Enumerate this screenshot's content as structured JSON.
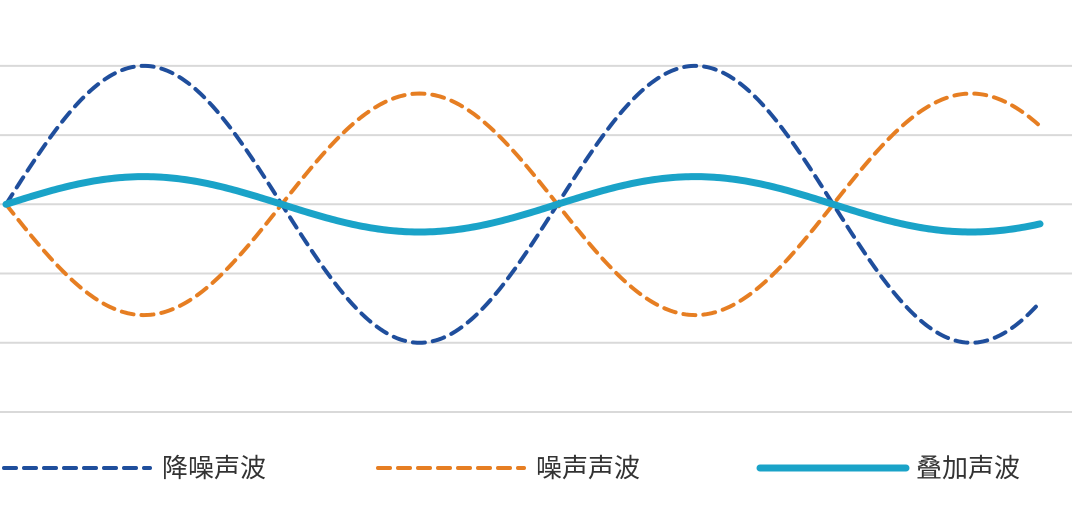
{
  "chart_data": {
    "type": "line",
    "title": "",
    "xlabel": "",
    "ylabel": "",
    "x": [
      0,
      0.5,
      1,
      1.5,
      2,
      2.5,
      3,
      3.5,
      3.75
    ],
    "ylim": [
      -1.5,
      1.1
    ],
    "grid": true,
    "legend_placement": "bottom",
    "series": [
      {
        "name": "降噪声波",
        "color": "#1f4e9c",
        "style": "dashed",
        "values": [
          0,
          1,
          0,
          -1,
          0,
          1,
          0,
          -1,
          -1
        ],
        "amplitude": 1
      },
      {
        "name": "噪声声波",
        "color": "#e67e22",
        "style": "dashed",
        "values": [
          0,
          -0.8,
          0,
          0.8,
          0,
          -0.8,
          0,
          0.8,
          0.8
        ],
        "amplitude": -0.8
      },
      {
        "name": "叠加声波",
        "color": "#1aa3c8",
        "style": "solid",
        "values": [
          0,
          0.2,
          0,
          -0.2,
          0,
          0.2,
          0,
          -0.2,
          -0.2
        ],
        "amplitude": 0.2
      }
    ]
  }
}
